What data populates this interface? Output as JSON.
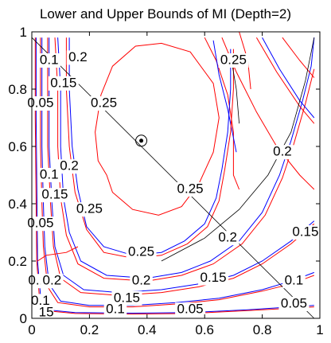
{
  "chart_data": {
    "type": "line",
    "title": "Lower and Upper Bounds of MI (Depth=2)",
    "xlabel": "",
    "ylabel": "",
    "xlim": [
      0,
      1
    ],
    "ylim": [
      0,
      1
    ],
    "xticks": [
      "0",
      "0.2",
      "0.4",
      "0.6",
      "0.8",
      "1"
    ],
    "yticks": [
      "0",
      "0.2",
      "0.4",
      "0.6",
      "0.8",
      "1"
    ],
    "grid": false,
    "legend": "none",
    "colors": {
      "lower": "#0000ff",
      "upper": "#ff0000",
      "reference": "#000000"
    },
    "marked_point": {
      "x": 0.38,
      "y": 0.62
    },
    "reference_lines": [
      {
        "name": "diagonal",
        "from": [
          0,
          0.98
        ],
        "to": [
          0.98,
          0
        ]
      }
    ],
    "contour_levels": [
      0.05,
      0.1,
      0.15,
      0.2,
      0.25
    ],
    "contour_labels": [
      {
        "text": "0.1",
        "x": 0.06,
        "y": 0.9
      },
      {
        "text": "0.2",
        "x": 0.16,
        "y": 0.91
      },
      {
        "text": "0.15",
        "x": 0.11,
        "y": 0.82
      },
      {
        "text": "0.05",
        "x": 0.03,
        "y": 0.75
      },
      {
        "text": "0.25",
        "x": 0.25,
        "y": 0.75
      },
      {
        "text": "0.25",
        "x": 0.7,
        "y": 0.9
      },
      {
        "text": "0.2",
        "x": 0.13,
        "y": 0.53
      },
      {
        "text": "0.1",
        "x": 0.06,
        "y": 0.5
      },
      {
        "text": "0.15",
        "x": 0.08,
        "y": 0.43
      },
      {
        "text": "0.25",
        "x": 0.2,
        "y": 0.38
      },
      {
        "text": "0.05",
        "x": 0.03,
        "y": 0.33
      },
      {
        "text": "0.25",
        "x": 0.55,
        "y": 0.45
      },
      {
        "text": "0.2",
        "x": 0.87,
        "y": 0.58
      },
      {
        "text": "0.25",
        "x": 0.38,
        "y": 0.23
      },
      {
        "text": "0.2",
        "x": 0.68,
        "y": 0.28
      },
      {
        "text": "0.15",
        "x": 0.95,
        "y": 0.3
      },
      {
        "text": "0.2",
        "x": 0.38,
        "y": 0.13
      },
      {
        "text": "0.15",
        "x": 0.63,
        "y": 0.14
      },
      {
        "text": "0.1",
        "x": 0.91,
        "y": 0.13
      },
      {
        "text": "0.1",
        "x": 0.02,
        "y": 0.13
      },
      {
        "text": "0.2",
        "x": 0.07,
        "y": 0.13
      },
      {
        "text": "0.15",
        "x": 0.33,
        "y": 0.07
      },
      {
        "text": "0.1",
        "x": 0.29,
        "y": 0.03
      },
      {
        "text": "0.05",
        "x": 0.55,
        "y": 0.03
      },
      {
        "text": "0.05",
        "x": 0.91,
        "y": 0.05
      },
      {
        "text": "0.1",
        "x": 0.03,
        "y": 0.06
      },
      {
        "text": "15",
        "x": 0.05,
        "y": 0.02
      }
    ],
    "series": [
      {
        "level": 0.25,
        "color": "red",
        "segments": [
          [
            [
              0.26,
              0.5
            ],
            [
              0.23,
              0.55
            ],
            [
              0.22,
              0.65
            ],
            [
              0.24,
              0.78
            ],
            [
              0.28,
              0.88
            ],
            [
              0.36,
              0.95
            ],
            [
              0.45,
              0.96
            ],
            [
              0.55,
              0.93
            ],
            [
              0.63,
              0.82
            ],
            [
              0.65,
              0.7
            ],
            [
              0.63,
              0.58
            ],
            [
              0.58,
              0.47
            ],
            [
              0.52,
              0.39
            ],
            [
              0.44,
              0.36
            ],
            [
              0.35,
              0.38
            ],
            [
              0.28,
              0.44
            ],
            [
              0.26,
              0.5
            ]
          ],
          [
            [
              0.6,
              0.98
            ],
            [
              0.64,
              0.9
            ],
            [
              0.68,
              0.78
            ],
            [
              0.7,
              0.65
            ],
            [
              0.7,
              0.55
            ],
            [
              0.7,
              0.5
            ],
            [
              0.72,
              0.45
            ]
          ],
          [
            [
              0.72,
              1.0
            ],
            [
              0.75,
              0.9
            ],
            [
              0.76,
              0.8
            ]
          ]
        ]
      },
      {
        "level": 0.25,
        "color": "blue",
        "segments": [
          [
            [
              0.13,
              0.98
            ],
            [
              0.13,
              0.8
            ],
            [
              0.14,
              0.6
            ],
            [
              0.16,
              0.45
            ],
            [
              0.19,
              0.32
            ],
            [
              0.25,
              0.25
            ],
            [
              0.35,
              0.22
            ],
            [
              0.45,
              0.23
            ],
            [
              0.53,
              0.27
            ],
            [
              0.6,
              0.33
            ],
            [
              0.64,
              0.42
            ],
            [
              0.66,
              0.52
            ],
            [
              0.68,
              0.65
            ],
            [
              0.69,
              0.8
            ],
            [
              0.69,
              0.94
            ]
          ],
          [
            [
              0.63,
              0.97
            ],
            [
              0.65,
              0.85
            ],
            [
              0.68,
              0.73
            ],
            [
              0.71,
              0.58
            ]
          ]
        ]
      },
      {
        "level": 0.25,
        "color": "red",
        "segments": [
          [
            [
              0.12,
              0.98
            ],
            [
              0.12,
              0.8
            ],
            [
              0.13,
              0.6
            ],
            [
              0.15,
              0.44
            ],
            [
              0.19,
              0.31
            ],
            [
              0.25,
              0.23
            ],
            [
              0.35,
              0.21
            ],
            [
              0.45,
              0.22
            ],
            [
              0.54,
              0.26
            ],
            [
              0.61,
              0.32
            ],
            [
              0.65,
              0.41
            ],
            [
              0.67,
              0.52
            ],
            [
              0.69,
              0.65
            ],
            [
              0.7,
              0.8
            ],
            [
              0.7,
              0.94
            ]
          ]
        ]
      },
      {
        "level": 0.2,
        "color": "blue",
        "segments": [
          [
            [
              0.09,
              0.98
            ],
            [
              0.1,
              0.8
            ],
            [
              0.1,
              0.6
            ],
            [
              0.11,
              0.42
            ],
            [
              0.13,
              0.3
            ],
            [
              0.17,
              0.2
            ],
            [
              0.26,
              0.15
            ],
            [
              0.4,
              0.14
            ],
            [
              0.52,
              0.16
            ],
            [
              0.62,
              0.2
            ],
            [
              0.72,
              0.27
            ],
            [
              0.8,
              0.37
            ],
            [
              0.86,
              0.5
            ],
            [
              0.9,
              0.62
            ],
            [
              0.94,
              0.76
            ],
            [
              0.97,
              0.88
            ],
            [
              0.98,
              0.98
            ]
          ]
        ]
      },
      {
        "level": 0.2,
        "color": "red",
        "segments": [
          [
            [
              0.08,
              0.98
            ],
            [
              0.09,
              0.8
            ],
            [
              0.09,
              0.6
            ],
            [
              0.1,
              0.42
            ],
            [
              0.12,
              0.29
            ],
            [
              0.16,
              0.19
            ],
            [
              0.25,
              0.14
            ],
            [
              0.4,
              0.13
            ],
            [
              0.52,
              0.15
            ],
            [
              0.63,
              0.19
            ],
            [
              0.73,
              0.26
            ],
            [
              0.81,
              0.36
            ],
            [
              0.87,
              0.49
            ],
            [
              0.91,
              0.61
            ],
            [
              0.95,
              0.75
            ],
            [
              0.98,
              0.87
            ]
          ]
        ]
      },
      {
        "level": 0.15,
        "color": "blue",
        "segments": [
          [
            [
              0.06,
              0.98
            ],
            [
              0.06,
              0.8
            ],
            [
              0.06,
              0.6
            ],
            [
              0.07,
              0.4
            ],
            [
              0.08,
              0.25
            ],
            [
              0.11,
              0.15
            ],
            [
              0.18,
              0.1
            ],
            [
              0.3,
              0.09
            ],
            [
              0.45,
              0.1
            ],
            [
              0.58,
              0.12
            ],
            [
              0.7,
              0.15
            ],
            [
              0.8,
              0.2
            ],
            [
              0.9,
              0.27
            ],
            [
              0.98,
              0.34
            ]
          ]
        ]
      },
      {
        "level": 0.15,
        "color": "red",
        "segments": [
          [
            [
              0.055,
              0.98
            ],
            [
              0.055,
              0.8
            ],
            [
              0.055,
              0.6
            ],
            [
              0.065,
              0.4
            ],
            [
              0.075,
              0.25
            ],
            [
              0.1,
              0.14
            ],
            [
              0.17,
              0.09
            ],
            [
              0.3,
              0.08
            ],
            [
              0.45,
              0.09
            ],
            [
              0.58,
              0.11
            ],
            [
              0.7,
              0.14
            ],
            [
              0.8,
              0.19
            ],
            [
              0.9,
              0.26
            ],
            [
              0.98,
              0.33
            ]
          ]
        ]
      },
      {
        "level": 0.1,
        "color": "blue",
        "segments": [
          [
            [
              0.035,
              0.98
            ],
            [
              0.035,
              0.8
            ],
            [
              0.035,
              0.6
            ],
            [
              0.04,
              0.4
            ],
            [
              0.045,
              0.25
            ],
            [
              0.06,
              0.12
            ],
            [
              0.1,
              0.06
            ],
            [
              0.2,
              0.045
            ],
            [
              0.35,
              0.045
            ],
            [
              0.5,
              0.055
            ],
            [
              0.65,
              0.07
            ],
            [
              0.8,
              0.1
            ],
            [
              0.9,
              0.13
            ],
            [
              0.98,
              0.16
            ]
          ]
        ]
      },
      {
        "level": 0.1,
        "color": "red",
        "segments": [
          [
            [
              0.03,
              0.98
            ],
            [
              0.03,
              0.8
            ],
            [
              0.03,
              0.6
            ],
            [
              0.035,
              0.4
            ],
            [
              0.04,
              0.25
            ],
            [
              0.055,
              0.11
            ],
            [
              0.09,
              0.055
            ],
            [
              0.2,
              0.04
            ],
            [
              0.35,
              0.04
            ],
            [
              0.5,
              0.05
            ],
            [
              0.65,
              0.065
            ],
            [
              0.8,
              0.095
            ],
            [
              0.9,
              0.12
            ],
            [
              0.98,
              0.15
            ]
          ]
        ]
      },
      {
        "level": 0.05,
        "color": "blue",
        "segments": [
          [
            [
              0.015,
              0.98
            ],
            [
              0.015,
              0.7
            ],
            [
              0.018,
              0.4
            ],
            [
              0.02,
              0.2
            ],
            [
              0.03,
              0.08
            ],
            [
              0.05,
              0.03
            ],
            [
              0.15,
              0.02
            ],
            [
              0.35,
              0.018
            ],
            [
              0.55,
              0.02
            ],
            [
              0.75,
              0.03
            ],
            [
              0.98,
              0.045
            ]
          ]
        ]
      },
      {
        "level": 0.05,
        "color": "red",
        "segments": [
          [
            [
              0.012,
              0.98
            ],
            [
              0.012,
              0.7
            ],
            [
              0.015,
              0.4
            ],
            [
              0.017,
              0.2
            ],
            [
              0.026,
              0.075
            ],
            [
              0.045,
              0.027
            ],
            [
              0.15,
              0.017
            ],
            [
              0.35,
              0.015
            ],
            [
              0.55,
              0.017
            ],
            [
              0.75,
              0.027
            ],
            [
              0.98,
              0.04
            ]
          ]
        ]
      },
      {
        "level": 0.2,
        "color": "red",
        "segments": [
          [
            [
              0.66,
              0.98
            ],
            [
              0.71,
              0.86
            ],
            [
              0.78,
              0.72
            ],
            [
              0.85,
              0.6
            ],
            [
              0.93,
              0.5
            ],
            [
              0.98,
              0.45
            ]
          ],
          [
            [
              0.78,
              0.98
            ],
            [
              0.85,
              0.86
            ],
            [
              0.93,
              0.74
            ],
            [
              0.98,
              0.68
            ]
          ],
          [
            [
              0.87,
              0.98
            ],
            [
              0.93,
              0.9
            ],
            [
              0.98,
              0.84
            ]
          ]
        ]
      },
      {
        "level": 0.2,
        "color": "blue",
        "segments": [
          [
            [
              0.8,
              0.98
            ],
            [
              0.86,
              0.87
            ],
            [
              0.93,
              0.76
            ],
            [
              0.98,
              0.7
            ]
          ]
        ]
      },
      {
        "level": 0.1,
        "color": "red",
        "segments": [
          [
            [
              0.02,
              0.2
            ],
            [
              0.05,
              0.22
            ],
            [
              0.12,
              0.23
            ],
            [
              0.16,
              0.25
            ]
          ]
        ]
      }
    ],
    "black_curves": [
      [
        [
          0.69,
          0.92
        ],
        [
          0.71,
          0.8
        ],
        [
          0.72,
          0.68
        ]
      ],
      [
        [
          0.98,
          0.98
        ],
        [
          0.95,
          0.83
        ],
        [
          0.9,
          0.65
        ],
        [
          0.82,
          0.5
        ],
        [
          0.72,
          0.38
        ],
        [
          0.6,
          0.28
        ],
        [
          0.45,
          0.2
        ]
      ]
    ]
  }
}
